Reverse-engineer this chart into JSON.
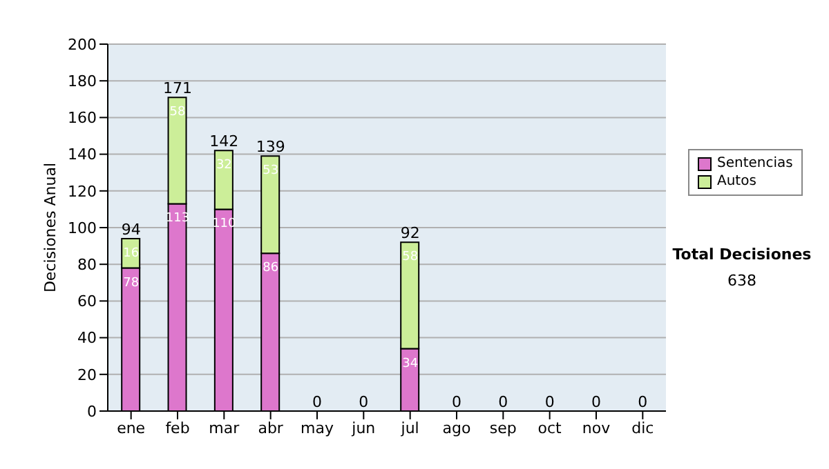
{
  "chart_data": {
    "type": "bar",
    "stacked": true,
    "ylabel": "Decisiones Anual",
    "categories": [
      "ene",
      "feb",
      "mar",
      "abr",
      "may",
      "jun",
      "jul",
      "ago",
      "sep",
      "oct",
      "nov",
      "dic"
    ],
    "series": [
      {
        "name": "Sentencias",
        "color": "#dd77cc",
        "values": [
          78,
          113,
          110,
          86,
          0,
          0,
          34,
          0,
          0,
          0,
          0,
          0
        ],
        "value_labels": [
          "78",
          "113",
          "110",
          "86",
          null,
          null,
          "34",
          null,
          null,
          null,
          null,
          null
        ]
      },
      {
        "name": "Autos",
        "color": "#ccee99",
        "values": [
          16,
          58,
          32,
          53,
          0,
          0,
          58,
          0,
          0,
          0,
          0,
          0
        ],
        "value_labels": [
          "16",
          "58",
          "32",
          "53",
          null,
          null,
          "58",
          null,
          null,
          null,
          null,
          null
        ]
      }
    ],
    "totals": [
      "94",
      "171",
      "142",
      "139",
      "0",
      "0",
      "92",
      "0",
      "0",
      "0",
      "0",
      "0"
    ],
    "ylim": [
      0,
      200
    ],
    "yticks": [
      0,
      20,
      40,
      60,
      80,
      100,
      120,
      140,
      160,
      180,
      200
    ],
    "grid": "y",
    "legend": "right",
    "annotations": [
      "Total Decisiones",
      "638"
    ]
  }
}
